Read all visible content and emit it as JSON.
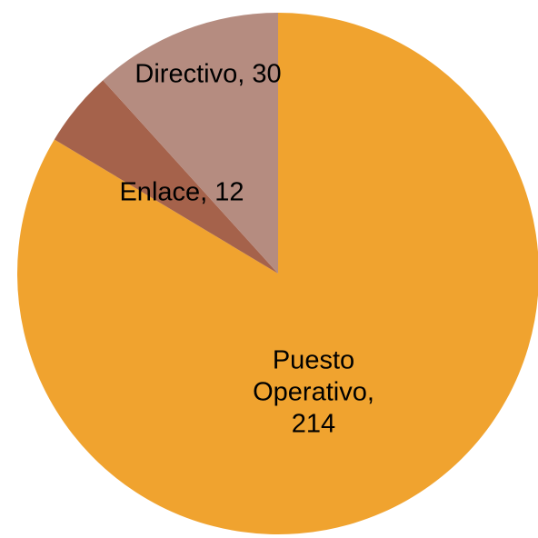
{
  "chart_data": {
    "type": "pie",
    "categories": [
      "Puesto Operativo",
      "Enlace",
      "Directivo"
    ],
    "values": [
      214,
      12,
      30
    ],
    "value_labels": [
      "Puesto Operativo, 214",
      "Enlace, 12",
      "Directivo, 30"
    ],
    "colors": [
      "#F0A32F",
      "#A5624B",
      "#B58C80"
    ]
  }
}
